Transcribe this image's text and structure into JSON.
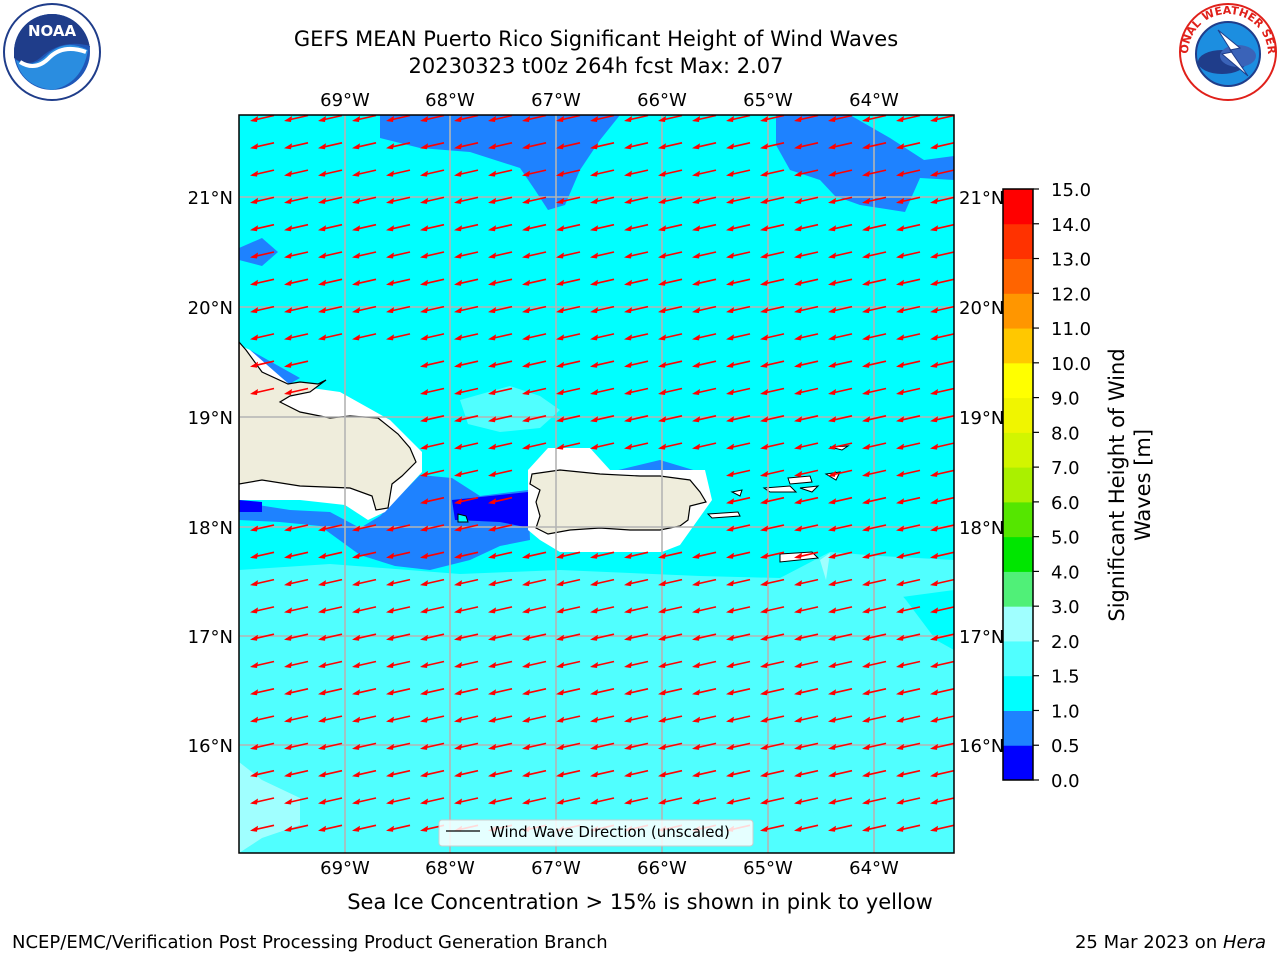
{
  "title_line1": "GEFS MEAN Puerto Rico Significant Height of Wind Waves",
  "title_line2": "20230323 t00z 264h fcst   Max: 2.07",
  "lon_labels": [
    "69°W",
    "68°W",
    "67°W",
    "66°W",
    "65°W",
    "64°W"
  ],
  "lat_labels": [
    "21°N",
    "20°N",
    "19°N",
    "18°N",
    "17°N",
    "16°N"
  ],
  "legend_label": "Wind Wave Direction (unscaled)",
  "colorbar": {
    "title": "Significant Height of Wind Waves [m]",
    "title_line1": "Significant Height of Wind",
    "title_line2": "Waves [m]",
    "ticks": [
      "0.0",
      "0.5",
      "1.0",
      "1.5",
      "2.0",
      "3.0",
      "4.0",
      "5.0",
      "6.0",
      "7.0",
      "8.0",
      "9.0",
      "10.0",
      "11.0",
      "12.0",
      "13.0",
      "14.0",
      "15.0"
    ],
    "colors": [
      "#0000ff",
      "#1e82ff",
      "#00ffff",
      "#50ffff",
      "#a0ffff",
      "#50f078",
      "#00e600",
      "#55e600",
      "#aaf000",
      "#d2f500",
      "#f0f500",
      "#ffff00",
      "#ffc800",
      "#ff9600",
      "#ff6400",
      "#ff3200",
      "#ff0000"
    ]
  },
  "bottom_note": "Sea Ice Concentration > 15% is shown in pink to yellow",
  "footer_left": "NCEP/EMC/Verification Post Processing Product Generation Branch",
  "footer_date": "25 Mar 2023 on ",
  "footer_host": "Hera",
  "logos": {
    "noaa": "NOAA",
    "nws": "NATIONAL WEATHER SERVICE"
  },
  "colors": {
    "arrow": "#ff0000",
    "land": "#efeddc",
    "grid": "#b4b4b4"
  }
}
